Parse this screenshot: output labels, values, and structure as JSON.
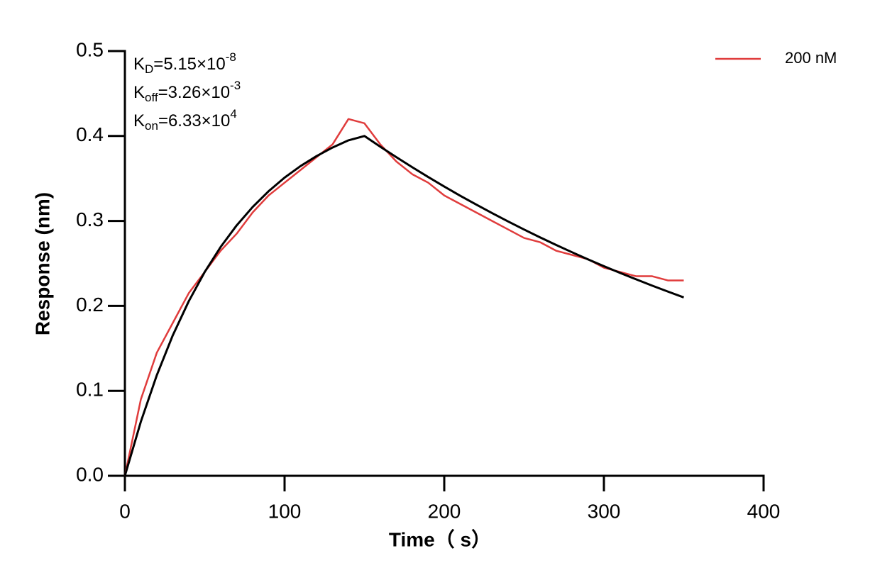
{
  "chart_data": {
    "type": "line",
    "x_label": "Time（ s）",
    "y_label": "Response (nm)",
    "annotations": [
      {
        "base": "K",
        "sub": "D",
        "text": "=5.15×10",
        "sup": "-8"
      },
      {
        "base": "K",
        "sub": "off",
        "text": "=3.26×10",
        "sup": "-3"
      },
      {
        "base": "K",
        "sub": "on",
        "text": "=6.33×10",
        "sup": "4"
      }
    ],
    "x": [
      0,
      10,
      20,
      30,
      40,
      50,
      60,
      70,
      80,
      90,
      100,
      110,
      120,
      130,
      140,
      150,
      160,
      170,
      180,
      190,
      200,
      210,
      220,
      230,
      240,
      250,
      260,
      270,
      280,
      290,
      300,
      310,
      320,
      330,
      340,
      350
    ],
    "series": [
      {
        "name": "200 nM",
        "color": "#e03c3c",
        "values": [
          0,
          0.09,
          0.145,
          0.18,
          0.215,
          0.24,
          0.265,
          0.285,
          0.31,
          0.33,
          0.345,
          0.36,
          0.375,
          0.39,
          0.42,
          0.415,
          0.39,
          0.37,
          0.355,
          0.345,
          0.33,
          0.32,
          0.31,
          0.3,
          0.29,
          0.28,
          0.275,
          0.265,
          0.26,
          0.255,
          0.245,
          0.24,
          0.235,
          0.235,
          0.23,
          0.23
        ]
      },
      {
        "color": "#000000",
        "values": [
          0,
          0.0638,
          0.1185,
          0.1654,
          0.2055,
          0.24,
          0.2695,
          0.2948,
          0.3164,
          0.335,
          0.351,
          0.3646,
          0.3763,
          0.3864,
          0.3949,
          0.4,
          0.3873,
          0.3751,
          0.3632,
          0.3517,
          0.3405,
          0.3297,
          0.3193,
          0.3092,
          0.2994,
          0.2899,
          0.2807,
          0.2718,
          0.2632,
          0.2548,
          0.2468,
          0.2389,
          0.2314,
          0.224,
          0.2169,
          0.21
        ]
      }
    ],
    "xlim": [
      0,
      400
    ],
    "xticks": [
      0,
      100,
      200,
      300,
      400
    ],
    "ylim": [
      0,
      0.5
    ],
    "yticks": [
      {
        "value": 0,
        "label": "0.0"
      },
      0.1,
      0.2,
      0.3,
      0.4,
      0.5
    ],
    "legend": "top-right"
  }
}
